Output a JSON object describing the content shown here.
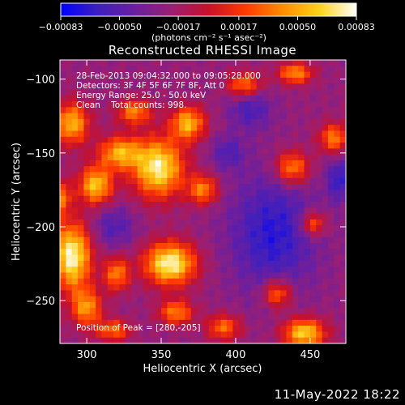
{
  "chart_data": {
    "type": "heatmap",
    "title": "Reconstructed RHESSI Image",
    "xlabel": "Heliocentric X (arcsec)",
    "ylabel": "Heliocentric Y (arcsec)",
    "xlim": [
      282,
      474
    ],
    "ylim": [
      -279,
      -87
    ],
    "x_ticks": [
      300,
      350,
      400,
      450
    ],
    "y_ticks": [
      -100,
      -150,
      -200,
      -250
    ],
    "colorbar": {
      "range": [
        -0.00083,
        0.00083
      ],
      "tick_values": [
        -0.00083,
        -0.0005,
        -0.00017,
        0.00017,
        0.0005,
        0.00083
      ],
      "tick_labels": [
        "-0.00083",
        "-0.00050",
        "-0.00017",
        "0.00017",
        "0.00050",
        "0.00083"
      ],
      "units_label": "(photons cm⁻² s⁻¹ asec⁻²)",
      "colors": [
        "#0000ff",
        "#3d1fbf",
        "#6a1fa0",
        "#9a1f73",
        "#c8102a",
        "#ff3a00",
        "#ff8c00",
        "#ffd21a",
        "#ffffff"
      ]
    },
    "annotations": [
      "28-Feb-2013 09:04:32.000 to 09:05:28.000",
      "Detectors: 3F 4F 5F 6F 7F 8F, Att 0",
      "Energy Range: 25.0 - 50.0 keV",
      "Clean    Total counts: 998."
    ],
    "peak_label": "Position of Peak = [280,-205]",
    "grid_cells": [
      48,
      48
    ],
    "blobs": [
      {
        "x": 290,
        "y": -220,
        "sx": 9,
        "sy": 16,
        "amp": 1.0
      },
      {
        "x": 290,
        "y": -130,
        "sx": 8,
        "sy": 10,
        "amp": 0.75
      },
      {
        "x": 306,
        "y": -172,
        "sx": 8,
        "sy": 9,
        "amp": 0.8
      },
      {
        "x": 322,
        "y": -150,
        "sx": 10,
        "sy": 8,
        "amp": 0.7
      },
      {
        "x": 332,
        "y": -122,
        "sx": 8,
        "sy": 6,
        "amp": 0.6
      },
      {
        "x": 348,
        "y": -160,
        "sx": 12,
        "sy": 14,
        "amp": 0.95
      },
      {
        "x": 368,
        "y": -130,
        "sx": 8,
        "sy": 8,
        "amp": 0.75
      },
      {
        "x": 378,
        "y": -175,
        "sx": 7,
        "sy": 7,
        "amp": 0.6
      },
      {
        "x": 356,
        "y": -225,
        "sx": 12,
        "sy": 10,
        "amp": 1.0
      },
      {
        "x": 320,
        "y": -232,
        "sx": 6,
        "sy": 8,
        "amp": 0.6
      },
      {
        "x": 300,
        "y": -255,
        "sx": 7,
        "sy": 9,
        "amp": 0.65
      },
      {
        "x": 318,
        "y": -270,
        "sx": 8,
        "sy": 5,
        "amp": 0.55
      },
      {
        "x": 360,
        "y": -258,
        "sx": 8,
        "sy": 6,
        "amp": 0.6
      },
      {
        "x": 392,
        "y": -268,
        "sx": 8,
        "sy": 6,
        "amp": 0.55
      },
      {
        "x": 428,
        "y": -245,
        "sx": 7,
        "sy": 7,
        "amp": 0.6
      },
      {
        "x": 446,
        "y": -272,
        "sx": 10,
        "sy": 7,
        "amp": 0.85
      },
      {
        "x": 452,
        "y": -198,
        "sx": 6,
        "sy": 6,
        "amp": 0.55
      },
      {
        "x": 438,
        "y": -160,
        "sx": 8,
        "sy": 8,
        "amp": 0.65
      },
      {
        "x": 466,
        "y": -140,
        "sx": 7,
        "sy": 7,
        "amp": 0.6
      },
      {
        "x": 406,
        "y": -104,
        "sx": 8,
        "sy": 6,
        "amp": 0.6
      },
      {
        "x": 440,
        "y": -96,
        "sx": 8,
        "sy": 5,
        "amp": 0.65
      },
      {
        "x": 282,
        "y": -180,
        "sx": 5,
        "sy": 8,
        "amp": 0.6
      }
    ],
    "cool_spots": [
      {
        "x": 425,
        "y": -205,
        "sx": 20,
        "sy": 28,
        "amp": 0.55
      },
      {
        "x": 410,
        "y": -120,
        "sx": 10,
        "sy": 10,
        "amp": 0.4
      },
      {
        "x": 470,
        "y": -168,
        "sx": 6,
        "sy": 10,
        "amp": 0.5
      },
      {
        "x": 318,
        "y": -200,
        "sx": 10,
        "sy": 10,
        "amp": 0.35
      },
      {
        "x": 395,
        "y": -150,
        "sx": 8,
        "sy": 8,
        "amp": 0.35
      }
    ]
  },
  "footer": {
    "timestamp": "11-May-2022 18:22"
  }
}
